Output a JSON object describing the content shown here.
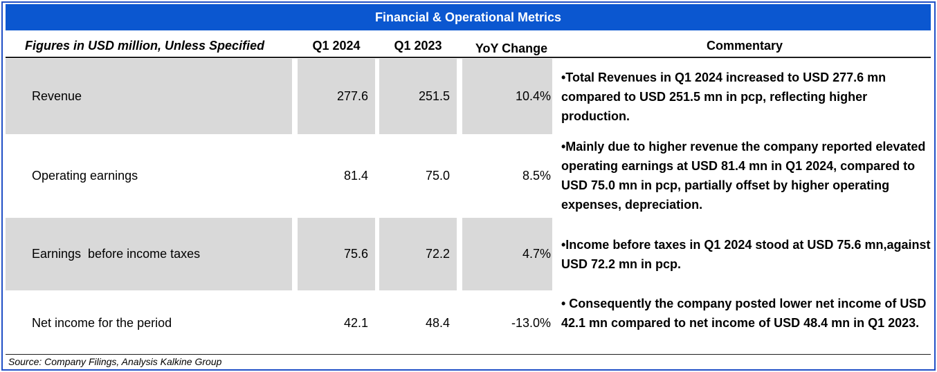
{
  "title": "Financial & Operational Metrics",
  "header": {
    "description": "Figures in USD million, Unless Specified",
    "col_q1_2024": "Q1 2024",
    "col_q1_2023": "Q1 2023",
    "col_yoy": "YoY Change",
    "col_commentary": "Commentary"
  },
  "rows": [
    {
      "label": "Revenue",
      "q1_2024": "277.6",
      "q1_2023": "251.5",
      "yoy": "10.4%",
      "commentary": "•Total Revenues in Q1 2024 increased to USD 277.6 mn compared to USD 251.5 mn in pcp, reflecting higher production."
    },
    {
      "label": "Operating earnings",
      "q1_2024": "81.4",
      "q1_2023": "75.0",
      "yoy": "8.5%",
      "commentary": "•Mainly due to higher revenue the company reported elevated operating earnings at USD 81.4 mn in Q1 2024, compared to USD 75.0 mn in pcp, partially offset by higher operating expenses, depreciation."
    },
    {
      "label": "Earnings  before income taxes",
      "q1_2024": "75.6",
      "q1_2023": "72.2",
      "yoy": "4.7%",
      "commentary": "•Income before taxes in Q1 2024 stood at USD 75.6 mn,against USD 72.2 mn in pcp."
    },
    {
      "label": "Net income for the period",
      "q1_2024": "42.1",
      "q1_2023": "48.4",
      "yoy": "-13.0%",
      "commentary": "• Consequently the company posted lower net income of USD 42.1 mn compared to net income of USD 48.4 mn in Q1 2023."
    }
  ],
  "source": "Source: Company Filings, Analysis Kalkine Group",
  "colors": {
    "title_bar": "#0b57d0",
    "frame": "#1f4fc6",
    "row_shade": "#d9d9d9"
  }
}
